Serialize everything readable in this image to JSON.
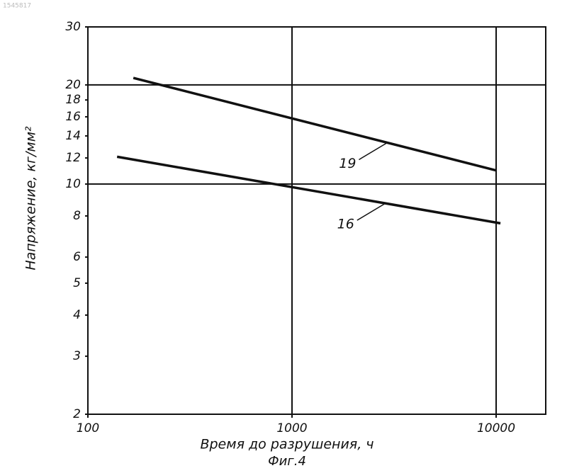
{
  "doc_id": "1545817",
  "chart_data": {
    "type": "line",
    "caption": "Фиг.4",
    "xlabel": "Время  до разрушения, ч",
    "ylabel": "Напряжение, кг/мм²",
    "xscale": "log",
    "yscale": "log",
    "xlim": [
      100,
      17500
    ],
    "ylim": [
      2,
      30
    ],
    "xticks": [
      100,
      1000,
      10000
    ],
    "yticks": [
      2,
      3,
      4,
      5,
      6,
      8,
      10,
      12,
      14,
      16,
      18,
      20,
      30
    ],
    "xgrid": [
      1000,
      10000
    ],
    "ygrid": [
      10,
      20
    ],
    "color": "#111",
    "series": [
      {
        "name": "19",
        "x": [
          167,
          10000
        ],
        "values": [
          21,
          11
        ]
      },
      {
        "name": "16",
        "x": [
          139,
          10500
        ],
        "values": [
          12.1,
          7.6
        ]
      }
    ]
  }
}
